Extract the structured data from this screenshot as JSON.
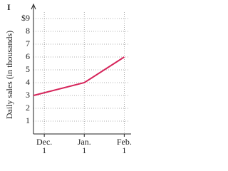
{
  "chart_data": {
    "type": "line",
    "annotation": "I",
    "y_label": "Daily sales (in thousands)",
    "x": [
      -0.27,
      1,
      2
    ],
    "series": [
      {
        "name": "Daily sales",
        "color": "#d6245a",
        "values": [
          3,
          4,
          6
        ]
      }
    ],
    "xlim": [
      -0.27,
      2.1
    ],
    "xticks": [
      {
        "value": 0,
        "label": "Dec.\n1"
      },
      {
        "value": 1,
        "label": "Jan.\n1"
      },
      {
        "value": 2,
        "label": "Feb.\n1"
      }
    ],
    "ylim": [
      0,
      9.5
    ],
    "yticks": [
      1,
      2,
      3,
      4,
      5,
      6,
      7,
      8,
      {
        "value": 9,
        "label": "$9"
      }
    ],
    "grid": true
  }
}
